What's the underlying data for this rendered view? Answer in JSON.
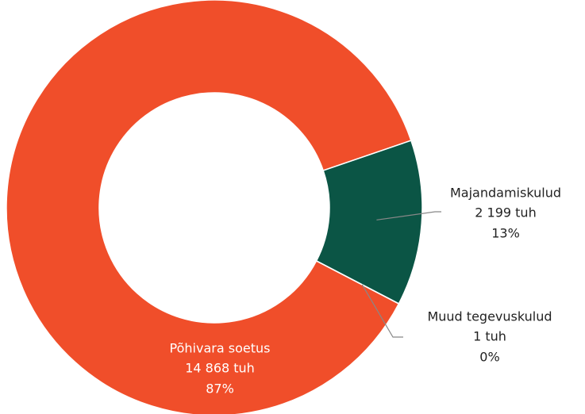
{
  "chart_data": {
    "type": "donut",
    "categories": [
      "Põhivara soetus",
      "Majandamiskulud",
      "Muud tegevuskulud"
    ],
    "values": [
      14868,
      2199,
      1
    ],
    "value_labels": [
      "14 868 tuh",
      "2 199 tuh",
      "1 tuh"
    ],
    "percent_labels": [
      "87%",
      "13%",
      "0%"
    ],
    "colors": [
      "#f04e2a",
      "#0b5545",
      "#f04e2a"
    ]
  }
}
